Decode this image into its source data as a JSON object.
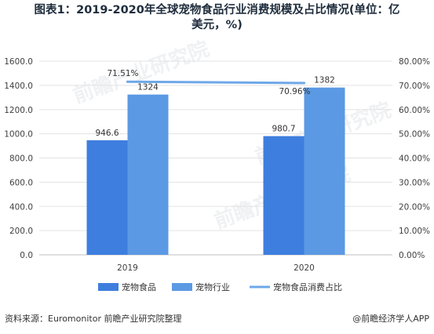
{
  "title_line1": "图表1：2019-2020年全球宠物食品行业消费规模及占比情况(单位：亿",
  "title_line2": "美元，%)",
  "footer_source": "资料来源：Euromonitor 前瞻产业研究院整理",
  "footer_brand": "@前瞻经济学人APP",
  "watermark_text": "前瞻产业研究院",
  "colors": {
    "food": "#3e7ede",
    "industry": "#5b99e4",
    "ratio": "#6ea8e8"
  },
  "chart_data": {
    "type": "bar",
    "categories": [
      "2019",
      "2020"
    ],
    "series": [
      {
        "name": "宠物食品",
        "values": [
          946.6,
          980.7
        ],
        "labels": [
          "946.6",
          "980.7"
        ],
        "axis": "left",
        "kind": "bar"
      },
      {
        "name": "宠物行业",
        "values": [
          1324,
          1382
        ],
        "labels": [
          "1324",
          "1382"
        ],
        "axis": "left",
        "kind": "bar"
      },
      {
        "name": "宠物食品消费占比",
        "values": [
          71.51,
          70.96
        ],
        "labels": [
          "71.51%",
          "70.96%"
        ],
        "axis": "right",
        "kind": "line"
      }
    ],
    "y_left": {
      "lim": [
        0,
        1600
      ],
      "ticks": [
        "0.0",
        "200.0",
        "400.0",
        "600.0",
        "800.0",
        "1000.0",
        "1200.0",
        "1400.0",
        "1600.0"
      ]
    },
    "y_right": {
      "lim": [
        0,
        80
      ],
      "ticks": [
        "0.00%",
        "10.00%",
        "20.00%",
        "30.00%",
        "40.00%",
        "50.00%",
        "60.00%",
        "70.00%",
        "80.00%"
      ]
    },
    "grid": true,
    "legend": "bottom"
  }
}
